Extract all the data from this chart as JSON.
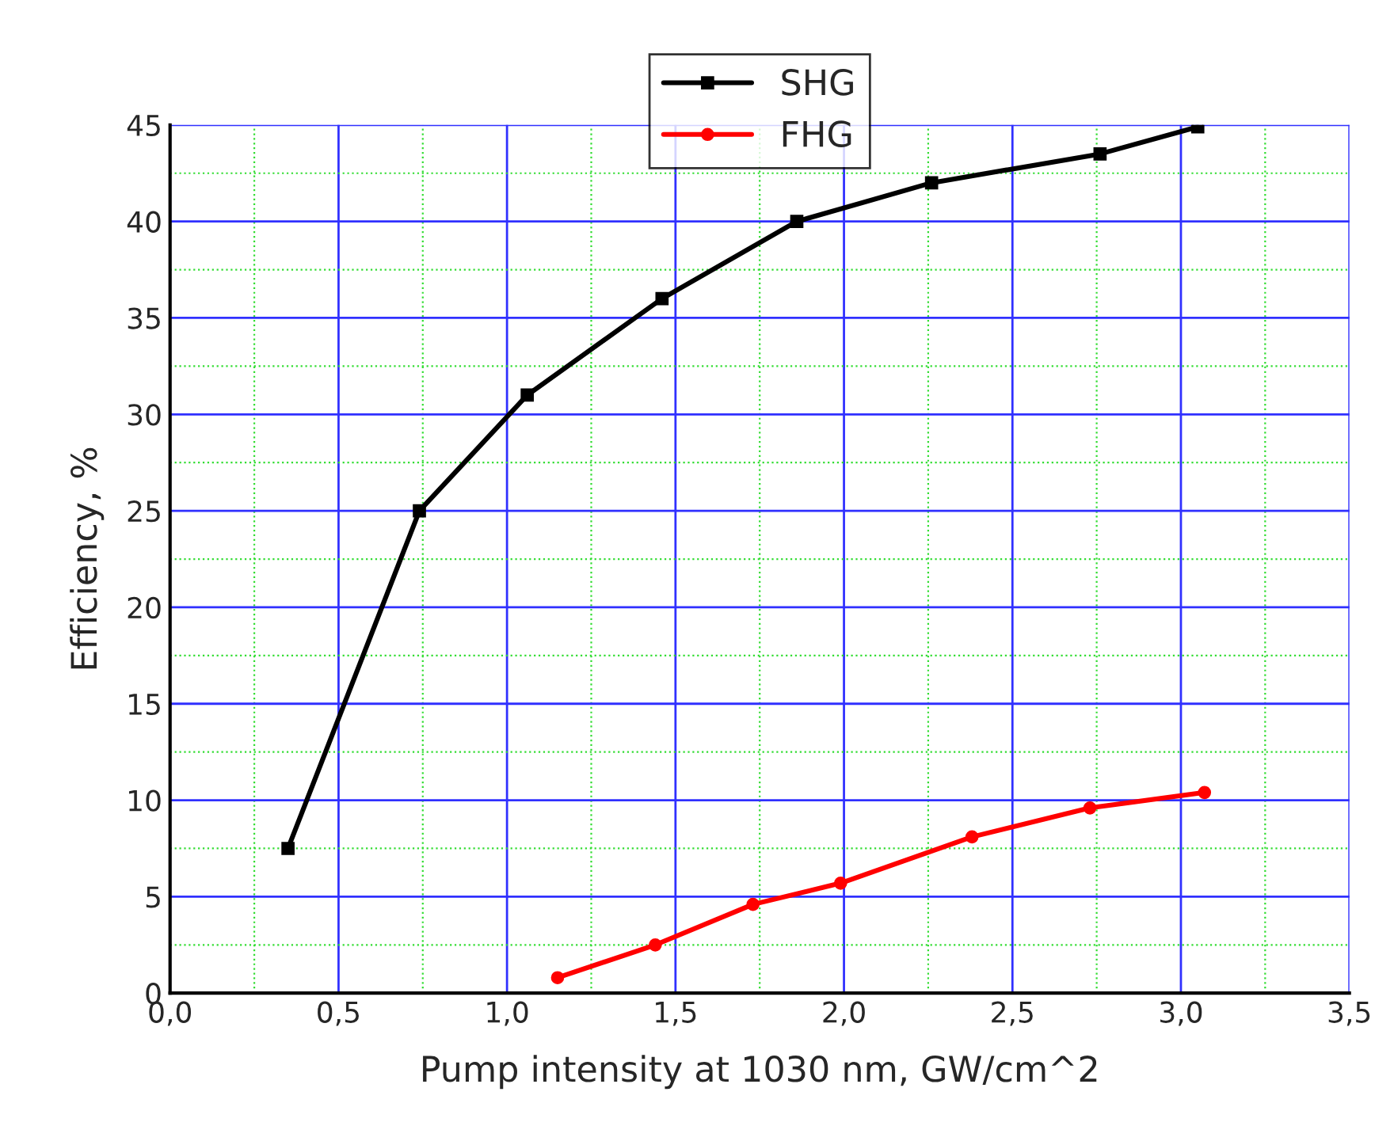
{
  "chart_data": {
    "type": "line",
    "xlabel": "Pump intensity at 1030 nm, GW/cm^2",
    "ylabel": "Efficiency, %",
    "xlim": [
      0,
      3.5
    ],
    "ylim": [
      0,
      45
    ],
    "xticks": [
      {
        "value": 0,
        "label": "0,0"
      },
      {
        "value": 0.25,
        "label": null
      },
      {
        "value": 0.5,
        "label": "0,5"
      },
      {
        "value": 0.75,
        "label": null
      },
      {
        "value": 1,
        "label": "1,0"
      },
      {
        "value": 1.25,
        "label": null
      },
      {
        "value": 1.5,
        "label": "1,5"
      },
      {
        "value": 1.75,
        "label": null
      },
      {
        "value": 2,
        "label": "2,0"
      },
      {
        "value": 2.25,
        "label": null
      },
      {
        "value": 2.5,
        "label": "2,5"
      },
      {
        "value": 2.75,
        "label": null
      },
      {
        "value": 3,
        "label": "3,0"
      },
      {
        "value": 3.25,
        "label": null
      },
      {
        "value": 3.5,
        "label": "3,5"
      }
    ],
    "yticks": [
      0,
      {
        "value": 2.5,
        "label": null
      },
      5,
      {
        "value": 7.5,
        "label": null
      },
      10,
      {
        "value": 12.5,
        "label": null
      },
      15,
      {
        "value": 17.5,
        "label": null
      },
      20,
      {
        "value": 22.5,
        "label": null
      },
      25,
      {
        "value": 27.5,
        "label": null
      },
      30,
      {
        "value": 32.5,
        "label": null
      },
      35,
      {
        "value": 37.5,
        "label": null
      },
      40,
      {
        "value": 42.5,
        "label": null
      },
      45
    ],
    "grid": true,
    "legend": "top",
    "line_style": "solid",
    "series": [
      {
        "name": "SHG",
        "color": "#000000",
        "marker": "square",
        "x": [
          0.35,
          0.74,
          1.06,
          1.46,
          1.86,
          2.26,
          2.76,
          3.05
        ],
        "values": [
          7.5,
          25,
          31,
          36,
          40,
          42,
          43.5,
          44.9
        ]
      },
      {
        "name": "FHG",
        "color": "#ff0000",
        "marker": "circle",
        "x": [
          1.15,
          1.44,
          1.73,
          1.99,
          2.38,
          2.73,
          3.07
        ],
        "values": [
          0.8,
          2.5,
          4.6,
          5.7,
          8.1,
          9.6,
          10.4
        ]
      }
    ]
  }
}
